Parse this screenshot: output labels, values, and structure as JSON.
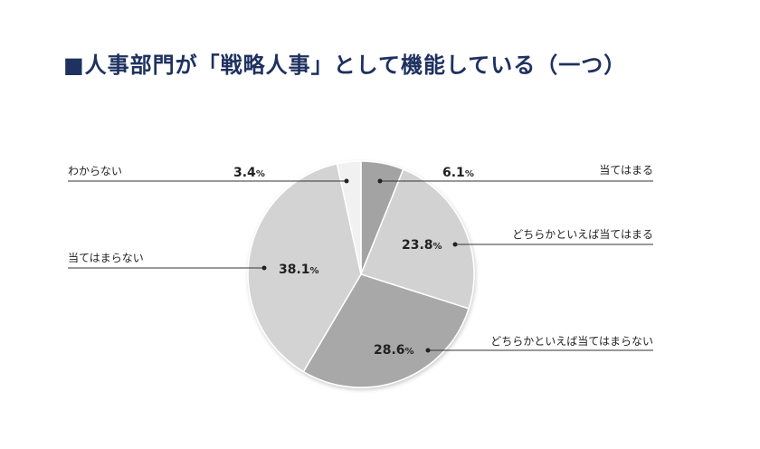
{
  "chart_data": {
    "type": "pie",
    "title": "■人事部門が「戦略人事」として機能している（一つ）",
    "start": "top",
    "direction": "clockwise",
    "percent_sign": "%",
    "slices": [
      {
        "label": "当てはまる",
        "value": 6.1,
        "value_text": "6.1",
        "color": "#a3a3a3"
      },
      {
        "label": "どちらかといえば当てはまる",
        "value": 23.8,
        "value_text": "23.8",
        "color": "#d2d2d2"
      },
      {
        "label": "どちらかといえば当てはまらない",
        "value": 28.6,
        "value_text": "28.6",
        "color": "#a8a8a8"
      },
      {
        "label": "当てはまらない",
        "value": 38.1,
        "value_text": "38.1",
        "color": "#d3d3d3"
      },
      {
        "label": "わからない",
        "value": 3.4,
        "value_text": "3.4",
        "color": "#f1f1f1"
      }
    ]
  }
}
